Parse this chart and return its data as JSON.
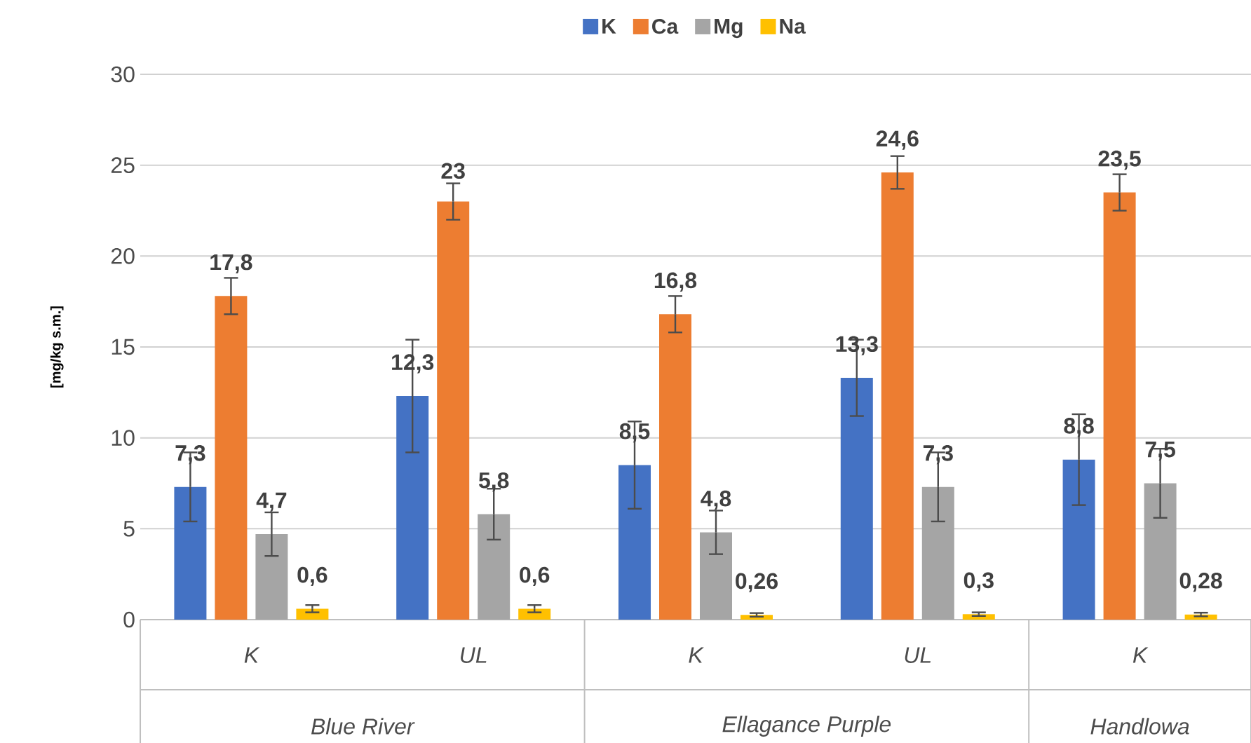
{
  "chart_data": {
    "type": "bar",
    "ylabel": "[mg/kg s.m.]",
    "categories": [
      "K",
      "UL",
      "K",
      "UL",
      "K"
    ],
    "annotations": [
      "Blue River",
      "Ellagance Purple",
      "Handlowa"
    ],
    "series": [
      {
        "name": "K",
        "color": "#4472c4",
        "values": [
          7.3,
          12.3,
          8.5,
          13.3,
          8.8
        ],
        "errors": [
          1.9,
          3.1,
          2.4,
          2.1,
          2.5
        ],
        "value_labels": [
          "7,3",
          "12,3",
          "8,5",
          "13,3",
          "8,8"
        ]
      },
      {
        "name": "Ca",
        "color": "#ed7d31",
        "values": [
          17.8,
          23,
          16.8,
          24.6,
          23.5
        ],
        "errors": [
          1,
          1,
          1,
          0.9,
          1
        ],
        "value_labels": [
          "17,8",
          "23",
          "16,8",
          "24,6",
          "23,5"
        ]
      },
      {
        "name": "Mg",
        "color": "#a5a5a5",
        "values": [
          4.7,
          5.8,
          4.8,
          7.3,
          7.5
        ],
        "errors": [
          1.2,
          1.4,
          1.2,
          1.9,
          1.9
        ],
        "value_labels": [
          "4,7",
          "5,8",
          "4,8",
          "7,3",
          "7,5"
        ]
      },
      {
        "name": "Na",
        "color": "#ffc000",
        "values": [
          0.6,
          0.6,
          0.26,
          0.3,
          0.28
        ],
        "errors": [
          0.2,
          0.2,
          0.1,
          0.1,
          0.1
        ],
        "value_labels": [
          "0,6",
          "0,6",
          "0,26",
          "0,3",
          "0,28"
        ]
      }
    ],
    "ylim": [
      0,
      30
    ],
    "yticks": [
      0,
      5,
      10,
      15,
      20,
      25,
      30
    ],
    "grid": "y",
    "legend": "top"
  }
}
